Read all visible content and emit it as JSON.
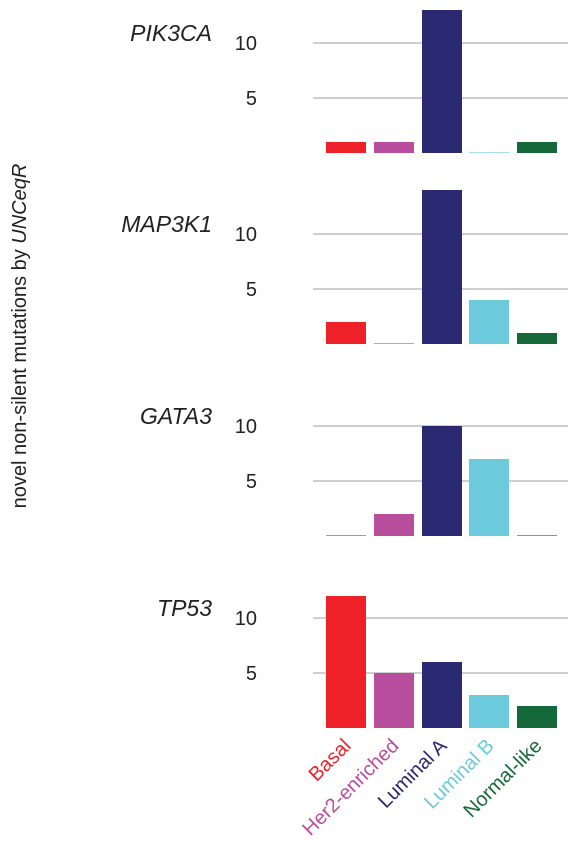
{
  "chart_data": {
    "type": "bar",
    "ylabel": {
      "prefix": "novel non-silent mutations by ",
      "italic": "UNCeqR"
    },
    "categories": [
      "Basal",
      "Her2-enriched",
      "Luminal A",
      "Luminal B",
      "Normal-like"
    ],
    "category_colors": [
      "#ee2129",
      "#b94e9e",
      "#2a2972",
      "#6bcbdc",
      "#15683a"
    ],
    "yticks": [
      5,
      10
    ],
    "grid": true,
    "panels": [
      {
        "gene": "PIK3CA",
        "values": [
          1,
          1,
          13,
          0,
          1
        ]
      },
      {
        "gene": "MAP3K1",
        "values": [
          2,
          0,
          14,
          4,
          1
        ]
      },
      {
        "gene": "GATA3",
        "values": [
          0,
          2,
          10,
          7,
          0
        ]
      },
      {
        "gene": "TP53",
        "values": [
          12,
          5,
          6,
          3,
          2
        ]
      }
    ]
  }
}
